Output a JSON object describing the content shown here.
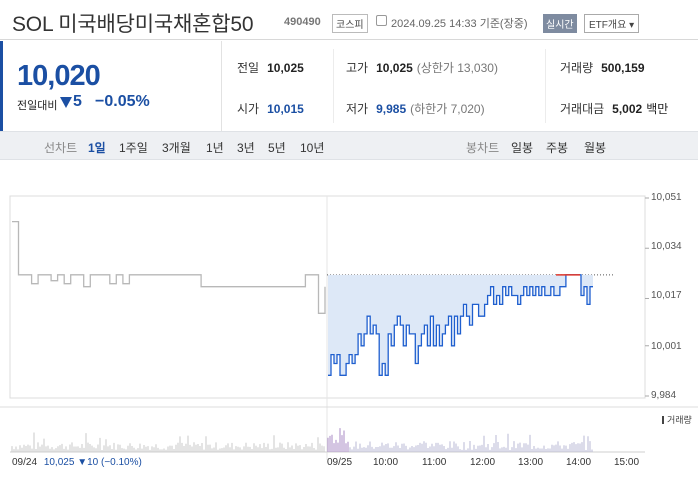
{
  "header": {
    "title": "SOL 미국배당미국채혼합50",
    "code": "490490",
    "market": "코스피",
    "datetime": "2024.09.25 14:33 기준(장중)",
    "realtime_badge": "실시간",
    "etf_info": "ETF개요 ▾"
  },
  "summary": {
    "price": "10,020",
    "change_label": "전일대비",
    "change": "5",
    "change_pct": "−0.05%",
    "stats": {
      "prev_close_label": "전일",
      "prev_close": "10,025",
      "open_label": "시가",
      "open": "10,015",
      "high_label": "고가",
      "high": "10,025",
      "upper_limit": "(상한가 13,030)",
      "low_label": "저가",
      "low": "9,985",
      "lower_limit": "(하한가 7,020)",
      "volume_label": "거래량",
      "volume": "500,159",
      "value_label": "거래대금",
      "value": "5,002",
      "value_unit": "백만"
    }
  },
  "tabs": {
    "line_label": "선차트",
    "periods": [
      "1일",
      "1주일",
      "3개월",
      "1년",
      "3년",
      "5년",
      "10년"
    ],
    "active_period": "1일",
    "candle_label": "봉차트",
    "candles": [
      "일봉",
      "주봉",
      "월봉"
    ]
  },
  "chart_data": {
    "type": "line",
    "y_ticks": [
      "10,051",
      "10,034",
      "10,017",
      "10,001",
      "9,984"
    ],
    "ylim": [
      9984,
      10051
    ],
    "x_ticks": [
      "09/25",
      "10:00",
      "11:00",
      "12:00",
      "13:00",
      "14:00",
      "15:00"
    ],
    "volume_legend": "거래량",
    "prev_session_label": "09/24",
    "prev_session_price": "10,025",
    "prev_session_change": "▼10 (−0.10%)",
    "reference_price": 10025,
    "prev_day_series": [
      10043,
      10025,
      10025,
      10022,
      10025,
      10025,
      10023,
      10025,
      10022,
      10025,
      10025,
      10021,
      10025,
      10025,
      10025,
      10022,
      10025,
      10022,
      10025,
      10025,
      10025,
      10025,
      10025,
      10025,
      10025,
      10025,
      10025,
      10025,
      10025,
      10021,
      10021,
      10021,
      10021,
      10021,
      10021,
      10021,
      10021,
      10021,
      10021,
      10021,
      10021,
      10021,
      10021,
      10021,
      10021,
      10025,
      10025,
      10012,
      10021
    ],
    "today_series": [
      9991,
      9998,
      9995,
      9998,
      9991,
      9991,
      9995,
      9998,
      9995,
      9998,
      10005,
      10001,
      10005,
      10011,
      10005,
      10008,
      10005,
      9991,
      9995,
      9991,
      10005,
      10001,
      10008,
      10011,
      10008,
      10001,
      10008,
      10005,
      10005,
      9995,
      10001,
      10005,
      10008,
      10001,
      10011,
      10001,
      10008,
      10001,
      10005,
      10008,
      10011,
      10001,
      10011,
      10005,
      10011,
      10015,
      10011,
      10008,
      10015,
      10015,
      10011,
      10011,
      10015,
      10018,
      10021,
      10015,
      10018,
      10015,
      10021,
      10018,
      10021,
      10018,
      10018,
      10015,
      10018,
      10021,
      10018,
      10021,
      10018,
      10021,
      10018,
      10021,
      10018,
      10018,
      10021,
      10018,
      10018,
      10021,
      10021,
      10025,
      10025,
      10025,
      10025,
      10025,
      10018,
      10021,
      10015,
      10021,
      10021
    ]
  }
}
